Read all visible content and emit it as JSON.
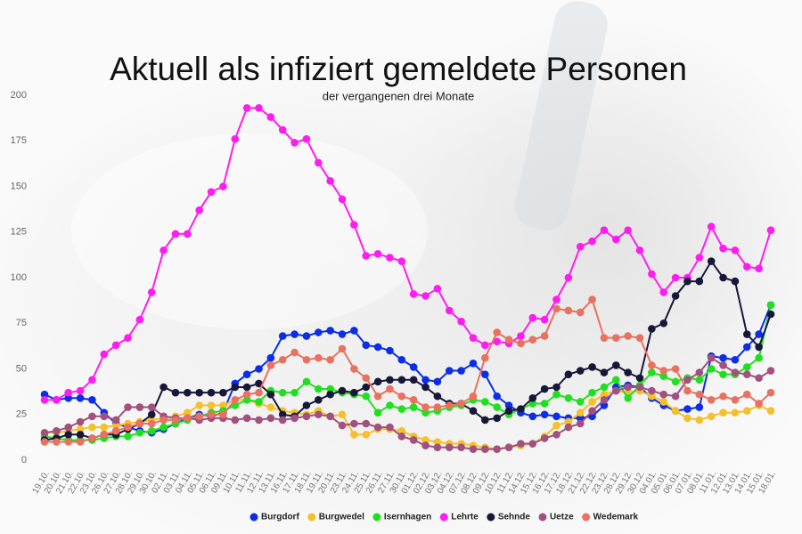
{
  "chart_data": {
    "type": "line",
    "title": "Aktuell als infiziert gemeldete Personen",
    "subtitle": "der vergangenen drei Monate",
    "categories": [
      "19.10.",
      "20.10.",
      "21.10.",
      "22.10.",
      "23.10.",
      "26.10.",
      "27.10.",
      "28.10.",
      "29.10.",
      "30.10.",
      "02.11.",
      "03.11.",
      "04.11.",
      "05.11.",
      "06.11.",
      "09.11.",
      "10.11.",
      "11.11.",
      "12.11.",
      "13.11.",
      "16.11.",
      "17.11.",
      "18.11.",
      "19.11.",
      "20.11.",
      "23.11.",
      "24.11.",
      "25.11.",
      "26.11.",
      "27.11.",
      "30.11.",
      "01.12.",
      "02.12.",
      "03.12.",
      "04.12.",
      "07.12.",
      "08.12.",
      "09.12.",
      "10.12.",
      "11.12.",
      "14.12.",
      "15.12.",
      "16.12.",
      "17.12.",
      "18.12.",
      "21.12.",
      "22.12.",
      "23.12.",
      "28.12.",
      "29.12.",
      "30.12.",
      "04.01.",
      "05.01.",
      "06.01.",
      "07.01.",
      "08.01.",
      "11.01.",
      "12.01.",
      "13.01.",
      "14.01.",
      "15.01.",
      "18.01."
    ],
    "series": [
      {
        "name": "Burgdorf",
        "color": "#0b2ee6",
        "values": [
          36,
          33,
          34,
          34,
          33,
          26,
          20,
          18,
          16,
          15,
          17,
          20,
          23,
          25,
          24,
          26,
          42,
          47,
          50,
          56,
          68,
          69,
          68,
          70,
          71,
          69,
          71,
          63,
          62,
          60,
          55,
          51,
          44,
          43,
          49,
          49,
          53,
          47,
          35,
          30,
          26,
          24,
          25,
          24,
          23,
          23,
          24,
          30,
          40,
          41,
          40,
          34,
          30,
          27,
          28,
          29,
          57,
          56,
          55,
          62,
          69,
          85
        ]
      },
      {
        "name": "Burgwedel",
        "color": "#f4c02c",
        "values": [
          15,
          15,
          16,
          17,
          18,
          18,
          19,
          20,
          21,
          22,
          23,
          24,
          26,
          30,
          30,
          30,
          33,
          33,
          31,
          29,
          27,
          26,
          25,
          27,
          24,
          25,
          14,
          14,
          17,
          17,
          16,
          13,
          11,
          10,
          9,
          9,
          8,
          7,
          6,
          7,
          8,
          9,
          13,
          19,
          21,
          26,
          32,
          36,
          38,
          37,
          38,
          35,
          32,
          27,
          23,
          22,
          24,
          26,
          26,
          27,
          30,
          27
        ]
      },
      {
        "name": "Isernhagen",
        "color": "#1fe01f",
        "values": [
          13,
          12,
          11,
          11,
          11,
          12,
          13,
          13,
          15,
          16,
          18,
          20,
          22,
          24,
          26,
          27,
          30,
          33,
          32,
          38,
          37,
          37,
          43,
          39,
          39,
          37,
          36,
          35,
          26,
          30,
          28,
          29,
          26,
          27,
          29,
          30,
          33,
          32,
          29,
          25,
          28,
          31,
          31,
          36,
          34,
          32,
          37,
          40,
          44,
          34,
          41,
          48,
          46,
          43,
          45,
          44,
          50,
          47,
          47,
          51,
          56,
          85
        ]
      },
      {
        "name": "Lehrte",
        "color": "#ff1cf0",
        "values": [
          33,
          33,
          37,
          38,
          44,
          58,
          63,
          67,
          77,
          92,
          115,
          124,
          124,
          137,
          147,
          150,
          176,
          193,
          193,
          188,
          181,
          174,
          176,
          163,
          153,
          143,
          129,
          112,
          113,
          111,
          109,
          91,
          90,
          94,
          82,
          76,
          67,
          63,
          65,
          64,
          68,
          78,
          77,
          88,
          100,
          117,
          120,
          126,
          121,
          126,
          115,
          102,
          92,
          100,
          100,
          111,
          128,
          116,
          115,
          106,
          105,
          126
        ]
      },
      {
        "name": "Sehnde",
        "color": "#17173a",
        "values": [
          11,
          12,
          14,
          14,
          12,
          14,
          14,
          17,
          20,
          25,
          40,
          37,
          37,
          37,
          37,
          37,
          40,
          40,
          42,
          36,
          25,
          24,
          30,
          33,
          36,
          38,
          37,
          40,
          43,
          44,
          44,
          44,
          40,
          35,
          31,
          31,
          27,
          22,
          23,
          27,
          28,
          34,
          39,
          40,
          47,
          49,
          51,
          48,
          52,
          48,
          45,
          72,
          75,
          90,
          98,
          98,
          109,
          100,
          98,
          69,
          62,
          80
        ]
      },
      {
        "name": "Uetze",
        "color": "#a2507f",
        "values": [
          15,
          16,
          18,
          21,
          24,
          24,
          22,
          29,
          29,
          29,
          24,
          23,
          23,
          22,
          23,
          23,
          22,
          23,
          22,
          23,
          22,
          23,
          24,
          25,
          24,
          19,
          20,
          20,
          18,
          18,
          13,
          11,
          8,
          7,
          7,
          7,
          6,
          6,
          6,
          7,
          9,
          9,
          12,
          14,
          18,
          20,
          27,
          33,
          38,
          40,
          40,
          38,
          36,
          35,
          44,
          48,
          56,
          52,
          48,
          47,
          45,
          49
        ]
      },
      {
        "name": "Wedemark",
        "color": "#e8715f",
        "values": [
          10,
          10,
          10,
          10,
          12,
          14,
          16,
          18,
          20,
          20,
          22,
          22,
          23,
          24,
          25,
          25,
          33,
          36,
          37,
          52,
          55,
          59,
          55,
          56,
          55,
          61,
          50,
          45,
          35,
          39,
          35,
          33,
          29,
          29,
          30,
          31,
          35,
          56,
          70,
          66,
          64,
          66,
          68,
          83,
          82,
          81,
          88,
          67,
          67,
          68,
          67,
          52,
          49,
          50,
          38,
          36,
          33,
          35,
          33,
          36,
          31,
          37
        ]
      }
    ],
    "ylim": [
      0,
      200
    ],
    "yticks": [
      0,
      25,
      50,
      75,
      100,
      125,
      150,
      175,
      200
    ],
    "legend": "bottom"
  }
}
